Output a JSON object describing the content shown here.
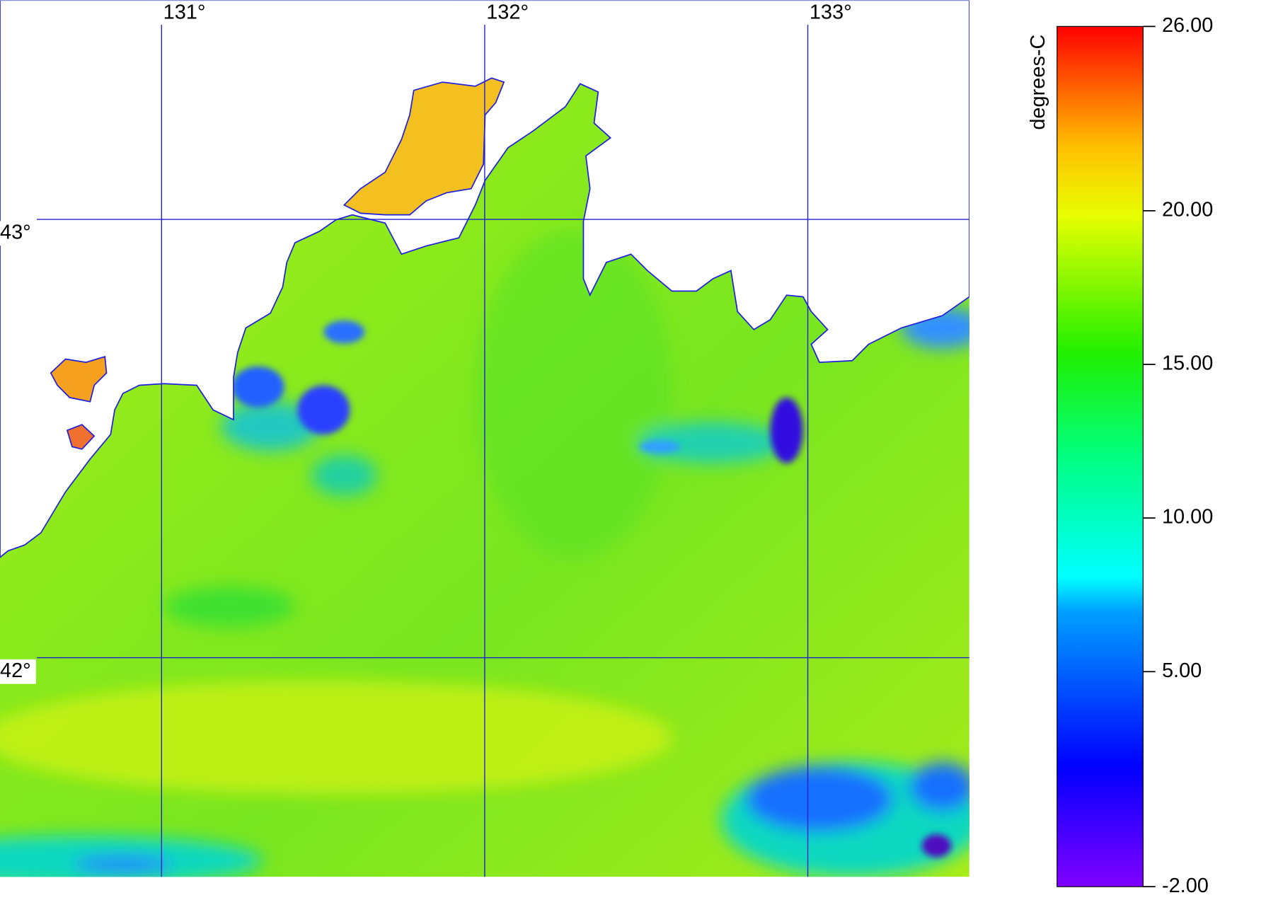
{
  "map": {
    "xlim": [
      130.5,
      133.5
    ],
    "ylim": [
      41.5,
      43.5
    ],
    "lon_ticks": [
      {
        "value": 131,
        "label": "131°"
      },
      {
        "value": 132,
        "label": "132°"
      },
      {
        "value": 133,
        "label": "133°"
      }
    ],
    "lat_ticks": [
      {
        "value": 43,
        "label": "43°"
      },
      {
        "value": 42,
        "label": "42°"
      }
    ],
    "colorbar": {
      "label": "degrees-C",
      "range": [
        -2,
        26
      ],
      "ticks": [
        {
          "value": 26,
          "label": "26.00"
        },
        {
          "value": 20,
          "label": "20.00"
        },
        {
          "value": 15,
          "label": "15.00"
        },
        {
          "value": 10,
          "label": "10.00"
        },
        {
          "value": 5,
          "label": "5.00"
        },
        {
          "value": -2,
          "label": "-2.00"
        }
      ]
    }
  }
}
